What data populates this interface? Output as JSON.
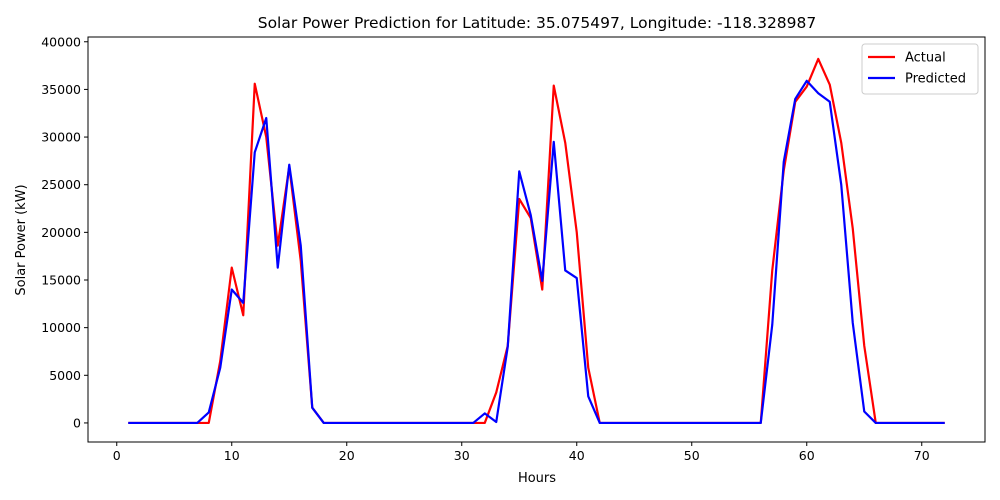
{
  "chart_data": {
    "type": "line",
    "title": "Solar Power Prediction for Latitude: 35.075497, Longitude: -118.328987",
    "xlabel": "Hours",
    "ylabel": "Solar Power (kW)",
    "xlim": [
      -2.5,
      75.5
    ],
    "ylim": [
      -2000,
      40500
    ],
    "xticks": [
      0,
      10,
      20,
      30,
      40,
      50,
      60,
      70
    ],
    "yticks": [
      0,
      5000,
      10000,
      15000,
      20000,
      25000,
      30000,
      35000,
      40000
    ],
    "grid": false,
    "legend_position": "top-right",
    "x": [
      1,
      2,
      3,
      4,
      5,
      6,
      7,
      8,
      9,
      10,
      11,
      12,
      13,
      14,
      15,
      16,
      17,
      18,
      19,
      20,
      21,
      22,
      23,
      24,
      25,
      26,
      27,
      28,
      29,
      30,
      31,
      32,
      33,
      34,
      35,
      36,
      37,
      38,
      39,
      40,
      41,
      42,
      43,
      44,
      45,
      46,
      47,
      48,
      49,
      50,
      51,
      52,
      53,
      54,
      55,
      56,
      57,
      58,
      59,
      60,
      61,
      62,
      63,
      64,
      65,
      66,
      67,
      68,
      69,
      70,
      71,
      72
    ],
    "series": [
      {
        "name": "Actual",
        "color": "#ff0000",
        "values": [
          0,
          0,
          0,
          0,
          0,
          0,
          0,
          0,
          6500,
          16300,
          11300,
          35600,
          30000,
          18600,
          26900,
          17000,
          1600,
          0,
          0,
          0,
          0,
          0,
          0,
          0,
          0,
          0,
          0,
          0,
          0,
          0,
          0,
          0,
          3200,
          8100,
          23500,
          21500,
          14000,
          35400,
          29400,
          20000,
          5800,
          0,
          0,
          0,
          0,
          0,
          0,
          0,
          0,
          0,
          0,
          0,
          0,
          0,
          0,
          0,
          16000,
          26500,
          33700,
          35300,
          38200,
          35500,
          29400,
          20400,
          8100,
          0,
          0,
          0,
          0,
          0,
          0,
          0
        ]
      },
      {
        "name": "Predicted",
        "color": "#0000ff",
        "values": [
          0,
          0,
          0,
          0,
          0,
          0,
          0,
          1100,
          5800,
          14000,
          12600,
          28400,
          32000,
          16300,
          27100,
          18600,
          1600,
          0,
          0,
          0,
          0,
          0,
          0,
          0,
          0,
          0,
          0,
          0,
          0,
          0,
          0,
          1000,
          100,
          8000,
          26400,
          21800,
          14900,
          29500,
          16000,
          15200,
          2800,
          0,
          0,
          0,
          0,
          0,
          0,
          0,
          0,
          0,
          0,
          0,
          0,
          0,
          0,
          0,
          10300,
          27400,
          34000,
          35900,
          34600,
          33700,
          25000,
          10500,
          1200,
          0,
          0,
          0,
          0,
          0,
          0,
          0
        ]
      }
    ]
  }
}
